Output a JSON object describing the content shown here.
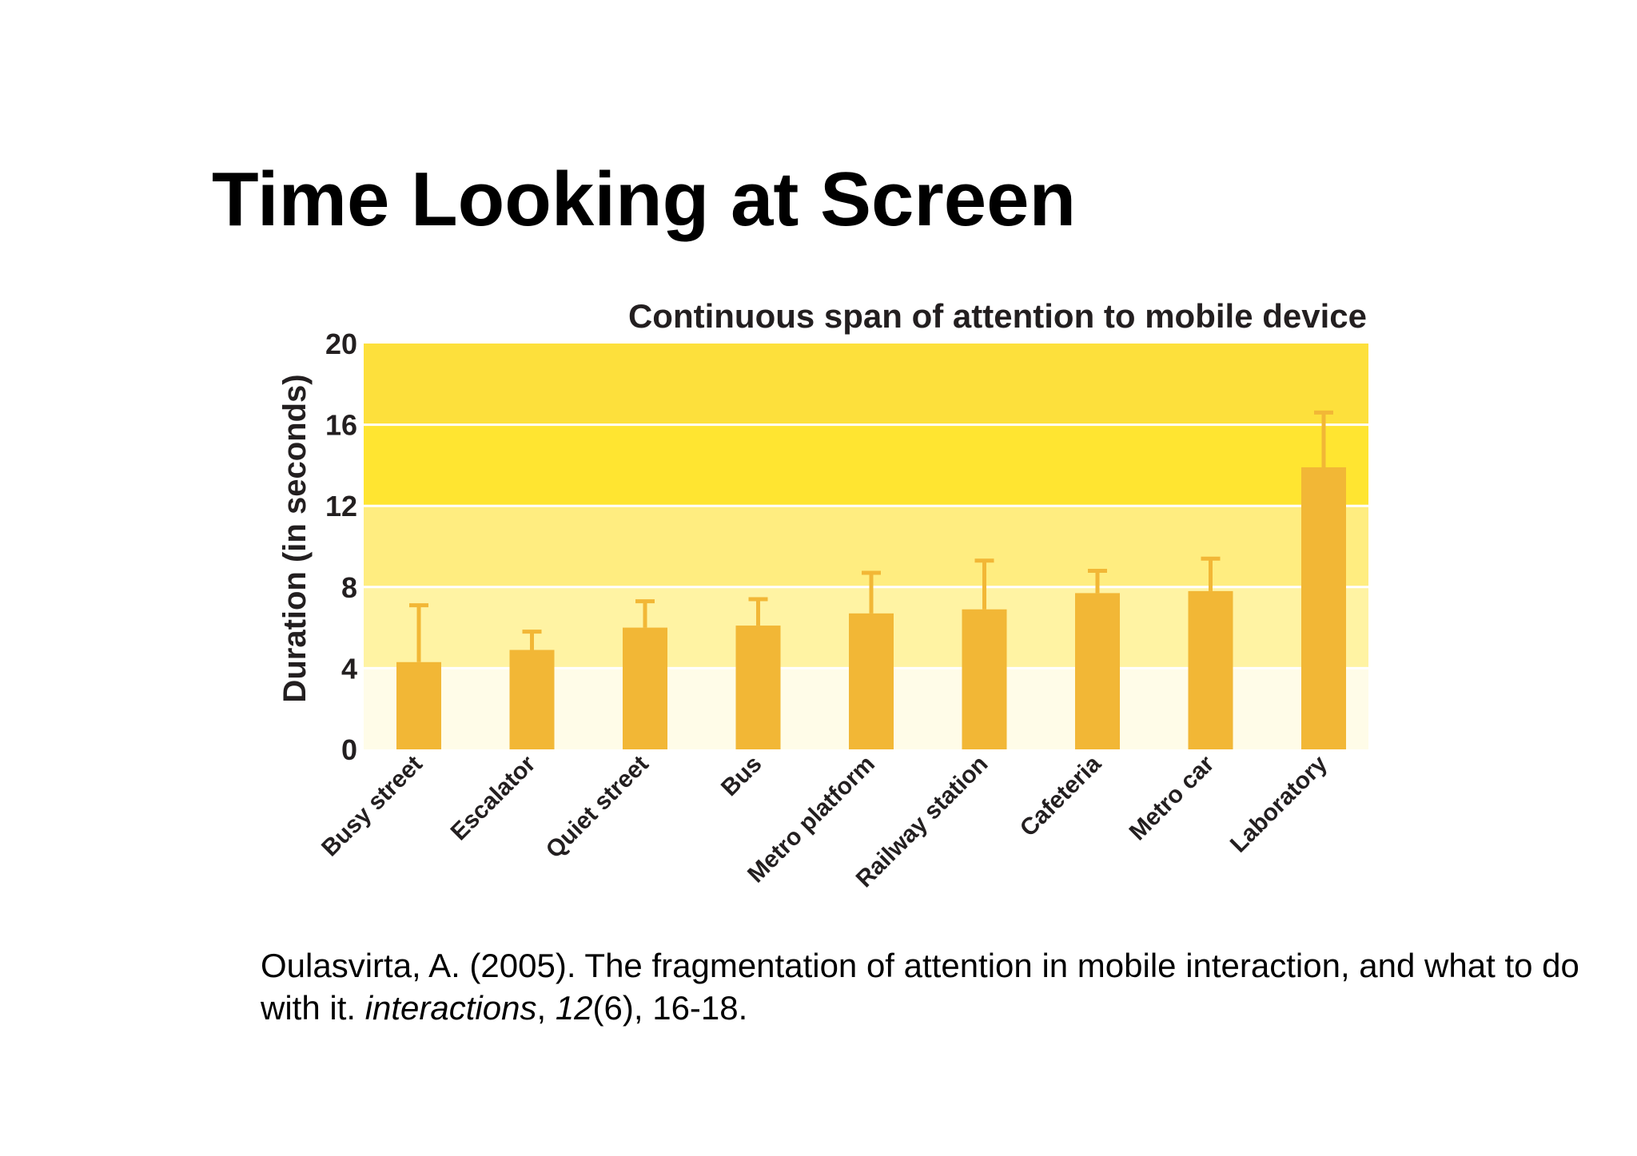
{
  "slide": {
    "title": "Time Looking at Screen"
  },
  "citation": {
    "authors": "Oulasvirta, A. (2005). The fragmentation of attention in mobile interaction, and what to do with it. ",
    "journal": "interactions",
    "sep": ", ",
    "volume": "12",
    "tail": "(6), 16-18."
  },
  "chart_data": {
    "type": "bar",
    "title": "Continuous span of attention to mobile device",
    "ylabel": "Duration (in seconds)",
    "xlabel": "",
    "ylim": [
      0,
      20
    ],
    "yticks": [
      0,
      4,
      8,
      12,
      16,
      20
    ],
    "categories": [
      "Busy street",
      "Escalator",
      "Quiet street",
      "Bus",
      "Metro platform",
      "Railway station",
      "Cafeteria",
      "Metro car",
      "Laboratory"
    ],
    "values": [
      4.3,
      4.9,
      6.0,
      6.1,
      6.7,
      6.9,
      7.7,
      7.8,
      13.9
    ],
    "error_upper": [
      7.1,
      5.8,
      7.3,
      7.4,
      8.7,
      9.3,
      8.8,
      9.4,
      16.6
    ],
    "bands": [
      {
        "from": 0,
        "to": 4,
        "color": "#fffce8"
      },
      {
        "from": 4,
        "to": 8,
        "color": "#fff3a3"
      },
      {
        "from": 8,
        "to": 12,
        "color": "#ffed80"
      },
      {
        "from": 12,
        "to": 16,
        "color": "#ffe531"
      },
      {
        "from": 16,
        "to": 20,
        "color": "#fde03c"
      }
    ],
    "bar_color": "#f2b736",
    "grid": true
  }
}
